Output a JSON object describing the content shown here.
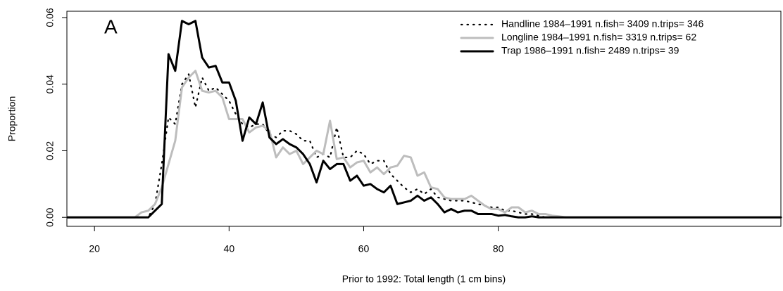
{
  "chart_data": {
    "type": "line",
    "annotation": "A",
    "x_label": "Prior to 1992:  Total length (1 cm bins)",
    "y_label": "Proportion",
    "x": [
      16,
      17,
      18,
      19,
      20,
      21,
      22,
      23,
      24,
      25,
      26,
      27,
      28,
      29,
      30,
      31,
      32,
      33,
      34,
      35,
      36,
      37,
      38,
      39,
      40,
      41,
      42,
      43,
      44,
      45,
      46,
      47,
      48,
      49,
      50,
      51,
      52,
      53,
      54,
      55,
      56,
      57,
      58,
      59,
      60,
      61,
      62,
      63,
      64,
      65,
      66,
      67,
      68,
      69,
      70,
      71,
      72,
      73,
      74,
      75,
      76,
      77,
      78,
      79,
      80,
      81,
      82,
      83,
      84,
      85,
      86,
      87,
      88,
      89,
      90,
      122
    ],
    "series": [
      {
        "name": "Handline 1984–1991 n.fish= 3409 n.trips= 346",
        "color": "#000000",
        "linestyle": "dotted",
        "values": [
          0,
          0,
          0,
          0,
          0,
          0,
          0,
          0,
          0,
          0,
          0,
          0,
          0,
          0.004,
          0.016,
          0.03,
          0.028,
          0.04,
          0.043,
          0.033,
          0.042,
          0.038,
          0.039,
          0.037,
          0.035,
          0.031,
          0.028,
          0.027,
          0.028,
          0.028,
          0.025,
          0.024,
          0.026,
          0.026,
          0.025,
          0.023,
          0.023,
          0.018,
          0.019,
          0.018,
          0.027,
          0.018,
          0.018,
          0.02,
          0.019,
          0.016,
          0.017,
          0.017,
          0.013,
          0.011,
          0.009,
          0.0075,
          0.0085,
          0.007,
          0.0085,
          0.006,
          0.0055,
          0.005,
          0.005,
          0.005,
          0.0045,
          0.004,
          0.0035,
          0.003,
          0.003,
          0.002,
          0.002,
          0.0015,
          0.001,
          0.001,
          0.0005,
          0,
          0,
          0,
          0,
          0
        ]
      },
      {
        "name": "Longline 1984–1991 n.fish= 3319 n.trips= 62",
        "color": "#bdbdbd",
        "linestyle": "solid",
        "values": [
          0,
          0,
          0,
          0,
          0,
          0,
          0,
          0,
          0,
          0,
          0,
          0.0015,
          0.002,
          0.004,
          0.009,
          0.016,
          0.023,
          0.039,
          0.042,
          0.044,
          0.038,
          0.0375,
          0.038,
          0.036,
          0.0295,
          0.0295,
          0.0295,
          0.0255,
          0.027,
          0.0275,
          0.026,
          0.018,
          0.021,
          0.019,
          0.02,
          0.016,
          0.018,
          0.02,
          0.019,
          0.029,
          0.0175,
          0.018,
          0.015,
          0.0165,
          0.017,
          0.0135,
          0.015,
          0.013,
          0.015,
          0.0155,
          0.0185,
          0.018,
          0.0125,
          0.0135,
          0.009,
          0.0085,
          0.006,
          0.0055,
          0.0055,
          0.0055,
          0.0065,
          0.005,
          0.0035,
          0.0025,
          0.0025,
          0.0015,
          0.003,
          0.003,
          0.0015,
          0.002,
          0.001,
          0.001,
          0.0005,
          0.0003,
          0,
          0
        ]
      },
      {
        "name": "Trap 1986–1991 n.fish= 2489 n.trips= 39",
        "color": "#000000",
        "linestyle": "solid",
        "values": [
          0,
          0,
          0,
          0,
          0,
          0,
          0,
          0,
          0,
          0,
          0,
          0,
          0,
          0.002,
          0.004,
          0.049,
          0.044,
          0.059,
          0.058,
          0.059,
          0.048,
          0.045,
          0.0455,
          0.0405,
          0.0405,
          0.035,
          0.023,
          0.03,
          0.028,
          0.0345,
          0.024,
          0.022,
          0.0235,
          0.022,
          0.021,
          0.019,
          0.016,
          0.0105,
          0.017,
          0.0145,
          0.016,
          0.016,
          0.011,
          0.0125,
          0.0095,
          0.01,
          0.0085,
          0.0075,
          0.0095,
          0.004,
          0.0045,
          0.005,
          0.0065,
          0.005,
          0.006,
          0.004,
          0.0015,
          0.0025,
          0.0015,
          0.002,
          0.002,
          0.001,
          0.001,
          0.001,
          0.0005,
          0.0007,
          0.0003,
          0,
          0,
          0.0003,
          0,
          0,
          0,
          0,
          0,
          0
        ]
      }
    ],
    "xlim": [
      15.9,
      122
    ],
    "ylim": [
      -0.0027,
      0.0619
    ],
    "xticks": [
      20,
      40,
      60,
      80
    ],
    "yticks": [
      {
        "value": 0,
        "label": "0.00"
      },
      {
        "value": 0.02,
        "label": "0.02"
      },
      {
        "value": 0.04,
        "label": "0.04"
      },
      {
        "value": 0.06,
        "label": "0.06"
      }
    ],
    "legend": "top-right"
  }
}
